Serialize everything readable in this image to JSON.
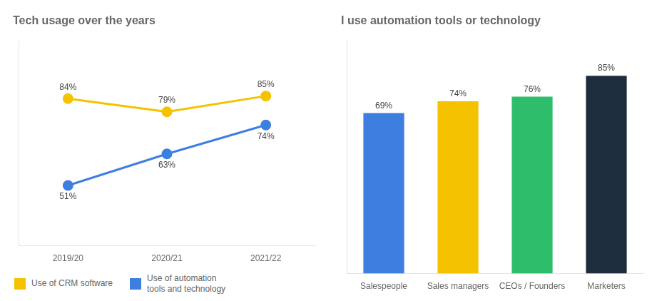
{
  "chart_data": [
    {
      "type": "line",
      "title": "Tech usage over the years",
      "categories": [
        "2019/20",
        "2020/21",
        "2021/22"
      ],
      "series": [
        {
          "name": "Use of CRM software",
          "color": "#F5C200",
          "values": [
            84,
            79,
            85
          ],
          "value_labels": [
            "84%",
            "79%",
            "85%"
          ]
        },
        {
          "name": "Use of automation\ntools and technology",
          "color": "#3D7FE0",
          "values": [
            51,
            63,
            74
          ],
          "value_labels": [
            "51%",
            "63%",
            "74%"
          ]
        }
      ],
      "ylim": [
        28,
        106
      ],
      "marker": "circle",
      "grid": false,
      "legend": "bottom",
      "data_labels": true,
      "tick_labels": "x"
    },
    {
      "type": "bar",
      "title": "I use automation tools or technology",
      "categories": [
        "Salespeople",
        "Sales managers",
        "CEOs / Founders",
        "Marketers"
      ],
      "values": [
        69,
        74,
        76,
        85
      ],
      "value_labels": [
        "69%",
        "74%",
        "76%",
        "85%"
      ],
      "colors": [
        "#3D7FE0",
        "#F5C200",
        "#2EBD6A",
        "#1E2D3D"
      ],
      "ylim": [
        0,
        100
      ],
      "grid": false,
      "data_labels": true,
      "tick_labels": "x"
    }
  ]
}
